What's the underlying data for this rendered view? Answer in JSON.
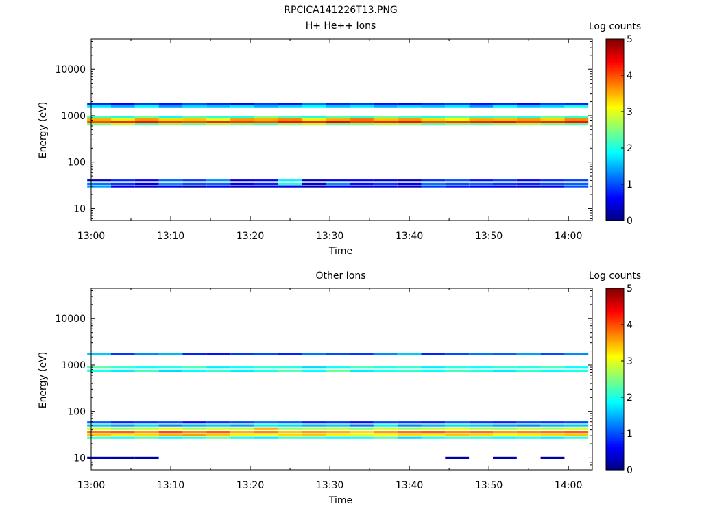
{
  "figure_title": "RPCICA141226T13.PNG",
  "chart_data": [
    {
      "type": "heatmap",
      "title": "H+ He++ Ions",
      "xlabel": "Time",
      "ylabel": "Energy (eV)",
      "y_scale": "log",
      "ylim": [
        5.5,
        45000
      ],
      "xlim": [
        "13:00",
        "14:03"
      ],
      "x_tick_labels": [
        "13:00",
        "13:10",
        "13:20",
        "13:30",
        "13:40",
        "13:50",
        "14:00"
      ],
      "y_tick_labels": [
        "10",
        "100",
        "1000",
        "10000"
      ],
      "colorbar": {
        "label": "Log counts",
        "range": [
          0,
          5
        ],
        "tick_labels": [
          "0",
          "1",
          "2",
          "3",
          "4",
          "5"
        ],
        "colormap": "jet"
      },
      "time_bins": [
        "13:01",
        "13:04",
        "13:07",
        "13:10",
        "13:13",
        "13:16",
        "13:19",
        "13:22",
        "13:25",
        "13:28",
        "13:31",
        "13:34",
        "13:37",
        "13:40",
        "13:43",
        "13:46",
        "13:49",
        "13:52",
        "13:55",
        "13:58",
        "14:01"
      ],
      "energy_bands": [
        {
          "energy_ev": 730,
          "log_counts": [
            4.0,
            4.2,
            4.3,
            4.1,
            4.0,
            4.2,
            4.1,
            4.0,
            4.3,
            4.2,
            4.4,
            4.1,
            4.2,
            4.3,
            4.0,
            4.1,
            4.2,
            4.3,
            4.1,
            4.2,
            4.3
          ]
        },
        {
          "energy_ev": 830,
          "log_counts": [
            3.5,
            3.2,
            3.6,
            3.3,
            3.4,
            3.0,
            3.6,
            3.5,
            3.7,
            3.2,
            3.5,
            3.8,
            3.4,
            3.6,
            3.3,
            3.1,
            3.5,
            3.4,
            3.6,
            3.3,
            3.7
          ]
        },
        {
          "energy_ev": 650,
          "log_counts": [
            2.5,
            2.8,
            2.3,
            2.6,
            2.4,
            2.7,
            2.5,
            2.3,
            2.6,
            2.8,
            2.4,
            2.5,
            2.7,
            2.6,
            2.3,
            2.5,
            2.4,
            2.6,
            2.7,
            2.5,
            2.3
          ]
        },
        {
          "energy_ev": 940,
          "log_counts": [
            2.2,
            2.0,
            2.4,
            1.9,
            2.3,
            2.1,
            2.0,
            2.5,
            2.2,
            2.0,
            2.3,
            2.1,
            2.4,
            2.2,
            2.0,
            2.3,
            2.1,
            2.2,
            2.0,
            2.4,
            2.1
          ]
        },
        {
          "energy_ev": 1600,
          "log_counts": [
            1.8,
            1.5,
            1.9,
            1.4,
            1.7,
            1.6,
            1.8,
            1.5,
            1.7,
            1.9,
            1.6,
            1.8,
            1.5,
            1.7,
            1.6,
            1.8,
            1.4,
            1.9,
            1.6,
            1.7,
            2.0
          ]
        },
        {
          "energy_ev": 1800,
          "log_counts": [
            0.8,
            0.6,
            0.9,
            0.7,
            1.0,
            0.8,
            0.6,
            0.9,
            0.7,
            1.2,
            0.8,
            0.9,
            0.7,
            0.6,
            0.8,
            0.9,
            0.7,
            0.8,
            0.6,
            0.9,
            0.8
          ]
        },
        {
          "energy_ev": 34,
          "log_counts": [
            1.2,
            0.9,
            0.5,
            1.3,
            1.0,
            1.1,
            0.6,
            0.8,
            2.0,
            0.5,
            1.3,
            0.7,
            0.9,
            0.6,
            1.2,
            1.0,
            1.1,
            0.9,
            0.8,
            1.0,
            1.1
          ]
        },
        {
          "energy_ev": 40,
          "log_counts": [
            0.3,
            0.8,
            0.6,
            1.1,
            0.9,
            1.3,
            0.4,
            0.6,
            1.8,
            0.3,
            0.5,
            0.6,
            0.5,
            0.3,
            0.8,
            1.0,
            0.7,
            0.9,
            0.6,
            0.8,
            0.9
          ]
        },
        {
          "energy_ev": 30,
          "log_counts": [
            1.4,
            0.5,
            0.4,
            0.6,
            0.3,
            0.6,
            0.3,
            0.4,
            0.5,
            0.2,
            0.6,
            0.4,
            0.5,
            0.3,
            0.9,
            0.7,
            0.6,
            0.5,
            0.4,
            0.5,
            1.0
          ]
        }
      ]
    },
    {
      "type": "heatmap",
      "title": "Other Ions",
      "xlabel": "Time",
      "ylabel": "Energy (eV)",
      "y_scale": "log",
      "ylim": [
        5.5,
        45000
      ],
      "xlim": [
        "13:00",
        "14:03"
      ],
      "x_tick_labels": [
        "13:00",
        "13:10",
        "13:20",
        "13:30",
        "13:40",
        "13:50",
        "14:00"
      ],
      "y_tick_labels": [
        "10",
        "100",
        "1000",
        "10000"
      ],
      "colorbar": {
        "label": "Log counts",
        "range": [
          0,
          5
        ],
        "tick_labels": [
          "0",
          "1",
          "2",
          "3",
          "4",
          "5"
        ],
        "colormap": "jet"
      },
      "time_bins": [
        "13:01",
        "13:04",
        "13:07",
        "13:10",
        "13:13",
        "13:16",
        "13:19",
        "13:22",
        "13:25",
        "13:28",
        "13:31",
        "13:34",
        "13:37",
        "13:40",
        "13:43",
        "13:46",
        "13:49",
        "13:52",
        "13:55",
        "13:58",
        "14:01"
      ],
      "energy_bands": [
        {
          "energy_ev": 36,
          "log_counts": [
            3.8,
            3.9,
            3.6,
            4.0,
            3.7,
            3.9,
            3.5,
            3.7,
            3.4,
            3.6,
            3.5,
            3.3,
            3.6,
            3.8,
            3.9,
            3.7,
            3.8,
            3.6,
            3.7,
            3.8,
            3.9
          ]
        },
        {
          "energy_ev": 31,
          "log_counts": [
            3.4,
            3.2,
            3.3,
            3.5,
            3.6,
            3.4,
            3.2,
            3.1,
            3.3,
            3.4,
            3.2,
            3.0,
            3.1,
            3.3,
            3.2,
            3.4,
            3.3,
            3.1,
            3.2,
            3.3,
            3.4
          ]
        },
        {
          "energy_ev": 42,
          "log_counts": [
            2.9,
            2.6,
            2.8,
            3.0,
            2.7,
            2.9,
            2.8,
            3.5,
            2.6,
            2.7,
            2.8,
            2.5,
            2.9,
            2.6,
            2.8,
            3.0,
            2.7,
            2.6,
            2.8,
            2.7,
            2.9
          ]
        },
        {
          "energy_ev": 27,
          "log_counts": [
            2.2,
            2.0,
            2.3,
            1.9,
            2.1,
            2.4,
            2.0,
            1.8,
            2.2,
            2.1,
            1.9,
            2.0,
            2.3,
            1.7,
            2.0,
            2.2,
            2.1,
            1.9,
            2.0,
            1.8,
            2.1
          ]
        },
        {
          "energy_ev": 50,
          "log_counts": [
            1.6,
            1.4,
            1.7,
            1.3,
            1.5,
            1.6,
            1.4,
            1.8,
            1.7,
            1.5,
            1.6,
            1.2,
            1.8,
            1.3,
            1.5,
            1.7,
            1.6,
            1.4,
            1.3,
            1.5,
            1.6
          ]
        },
        {
          "energy_ev": 58,
          "log_counts": [
            1.1,
            0.8,
            0.9,
            1.0,
            0.7,
            0.9,
            1.0,
            1.2,
            1.1,
            0.8,
            0.9,
            0.7,
            1.0,
            0.9,
            0.8,
            1.1,
            0.9,
            0.8,
            1.0,
            0.9,
            1.0
          ]
        },
        {
          "energy_ev": 750,
          "log_counts": [
            2.0,
            1.8,
            2.2,
            1.7,
            1.9,
            2.1,
            1.8,
            2.0,
            2.3,
            1.9,
            2.4,
            1.8,
            2.0,
            2.1,
            1.9,
            2.2,
            2.0,
            1.8,
            2.1,
            1.9,
            2.0
          ]
        },
        {
          "energy_ev": 880,
          "log_counts": [
            2.3,
            2.1,
            1.9,
            2.0,
            2.2,
            1.8,
            1.9,
            2.1,
            2.0,
            1.7,
            1.9,
            2.2,
            2.0,
            2.1,
            1.8,
            2.0,
            1.9,
            2.1,
            2.0,
            2.2,
            1.9
          ]
        },
        {
          "energy_ev": 1700,
          "log_counts": [
            1.6,
            0.9,
            1.3,
            1.5,
            0.8,
            0.7,
            0.9,
            1.0,
            0.8,
            1.2,
            1.0,
            0.9,
            1.3,
            1.6,
            0.8,
            1.0,
            1.2,
            1.1,
            1.4,
            1.0,
            1.3
          ]
        },
        {
          "energy_ev": 10,
          "log_counts": [
            0.3,
            0.2,
            0.2,
            0.0,
            0.0,
            0.0,
            0.0,
            0.0,
            0.0,
            0.0,
            0.0,
            0.0,
            0.0,
            0.0,
            0.0,
            0.2,
            0.0,
            0.2,
            0.0,
            0.2,
            0.0
          ]
        }
      ]
    }
  ]
}
